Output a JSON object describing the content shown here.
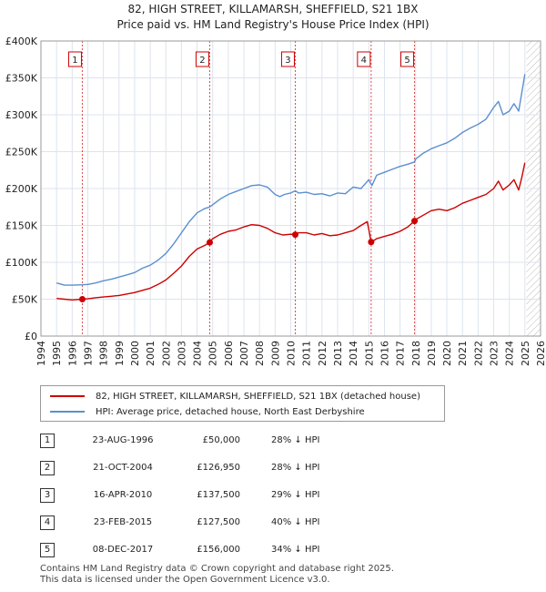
{
  "header": {
    "title": "82, HIGH STREET, KILLAMARSH, SHEFFIELD, S21 1BX",
    "subtitle": "Price paid vs. HM Land Registry's House Price Index (HPI)"
  },
  "legend": {
    "property_label": "82, HIGH STREET, KILLAMARSH, SHEFFIELD, S21 1BX (detached house)",
    "hpi_label": "HPI: Average price, detached house, North East Derbyshire"
  },
  "sales": [
    {
      "num": "1",
      "date": "23-AUG-1996",
      "price": "£50,000",
      "hpi": "28% ↓ HPI"
    },
    {
      "num": "2",
      "date": "21-OCT-2004",
      "price": "£126,950",
      "hpi": "28% ↓ HPI"
    },
    {
      "num": "3",
      "date": "16-APR-2010",
      "price": "£137,500",
      "hpi": "29% ↓ HPI"
    },
    {
      "num": "4",
      "date": "23-FEB-2015",
      "price": "£127,500",
      "hpi": "40% ↓ HPI"
    },
    {
      "num": "5",
      "date": "08-DEC-2017",
      "price": "£156,000",
      "hpi": "34% ↓ HPI"
    }
  ],
  "footer": {
    "line1": "Contains HM Land Registry data © Crown copyright and database right 2025.",
    "line2": "This data is licensed under the Open Government Licence v3.0."
  },
  "colors": {
    "property": "#cc0000",
    "hpi": "#5b8fd0",
    "grid": "#dde3ee",
    "plot_bg": "#ffffff",
    "hatch": "#bbbbbb"
  },
  "chart_data": {
    "type": "line",
    "title": "Price paid vs. HM Land Registry's House Price Index (HPI)",
    "xlim": [
      1994,
      2026
    ],
    "ylim": [
      0,
      400000
    ],
    "x_ticks": [
      1994,
      1995,
      1996,
      1997,
      1998,
      1999,
      2000,
      2001,
      2002,
      2003,
      2004,
      2005,
      2006,
      2007,
      2008,
      2009,
      2010,
      2011,
      2012,
      2013,
      2014,
      2015,
      2016,
      2017,
      2018,
      2019,
      2020,
      2021,
      2022,
      2023,
      2024,
      2025,
      2026
    ],
    "y_ticks": [
      0,
      50000,
      100000,
      150000,
      200000,
      250000,
      300000,
      350000,
      400000
    ],
    "y_tick_labels": [
      "£0",
      "£50K",
      "£100K",
      "£150K",
      "£200K",
      "£250K",
      "£300K",
      "£350K",
      "£400K"
    ],
    "grid": true,
    "future_hatch_from": 2025.1,
    "series": [
      {
        "name": "HPI: Average price, detached house, North East Derbyshire",
        "x": [
          1995.0,
          1995.5,
          1996.0,
          1996.65,
          1997.0,
          1997.5,
          1998.0,
          1998.5,
          1999.0,
          1999.5,
          2000.0,
          2000.5,
          2001.0,
          2001.5,
          2002.0,
          2002.5,
          2003.0,
          2003.5,
          2004.0,
          2004.5,
          2004.8,
          2005.0,
          2005.5,
          2006.0,
          2006.5,
          2007.0,
          2007.5,
          2008.0,
          2008.5,
          2009.0,
          2009.3,
          2009.6,
          2010.0,
          2010.3,
          2010.5,
          2011.0,
          2011.5,
          2012.0,
          2012.5,
          2013.0,
          2013.5,
          2014.0,
          2014.5,
          2015.0,
          2015.2,
          2015.5,
          2016.0,
          2016.5,
          2017.0,
          2017.5,
          2017.93,
          2018.0,
          2018.5,
          2019.0,
          2019.5,
          2020.0,
          2020.5,
          2021.0,
          2021.5,
          2022.0,
          2022.5,
          2023.0,
          2023.3,
          2023.6,
          2024.0,
          2024.3,
          2024.6,
          2024.8,
          2025.0
        ],
        "y": [
          72000,
          69000,
          69000,
          69500,
          70000,
          72000,
          75000,
          77000,
          80000,
          83000,
          86000,
          92000,
          96000,
          103000,
          112000,
          125000,
          140000,
          155000,
          167000,
          173000,
          175000,
          178000,
          186000,
          192000,
          196000,
          200000,
          204000,
          205000,
          202000,
          192000,
          189000,
          192000,
          194000,
          197000,
          194000,
          195000,
          192000,
          193000,
          190000,
          194000,
          193000,
          202000,
          200000,
          212000,
          204000,
          218000,
          222000,
          226000,
          230000,
          233000,
          236000,
          240000,
          248000,
          254000,
          258000,
          262000,
          268000,
          276000,
          282000,
          287000,
          294000,
          310000,
          318000,
          300000,
          305000,
          315000,
          305000,
          330000,
          355000
        ]
      },
      {
        "name": "82, HIGH STREET, KILLAMARSH, SHEFFIELD, S21 1BX (detached house)",
        "x": [
          1995.0,
          1995.5,
          1996.0,
          1996.65,
          1997.0,
          1997.5,
          1998.0,
          1998.5,
          1999.0,
          1999.5,
          2000.0,
          2000.5,
          2001.0,
          2001.5,
          2002.0,
          2002.5,
          2003.0,
          2003.5,
          2004.0,
          2004.5,
          2004.8,
          2005.0,
          2005.5,
          2006.0,
          2006.5,
          2007.0,
          2007.5,
          2008.0,
          2008.5,
          2009.0,
          2009.5,
          2010.0,
          2010.29,
          2010.5,
          2011.0,
          2011.5,
          2012.0,
          2012.5,
          2013.0,
          2013.5,
          2014.0,
          2014.5,
          2014.9,
          2015.15,
          2015.5,
          2016.0,
          2016.5,
          2017.0,
          2017.5,
          2017.93,
          2018.0,
          2018.5,
          2019.0,
          2019.5,
          2020.0,
          2020.5,
          2021.0,
          2021.5,
          2022.0,
          2022.5,
          2023.0,
          2023.3,
          2023.6,
          2024.0,
          2024.3,
          2024.6,
          2024.8,
          2025.0
        ],
        "y": [
          51000,
          50000,
          49000,
          50000,
          50500,
          52000,
          53000,
          54000,
          55000,
          57000,
          59000,
          62000,
          65000,
          70000,
          76000,
          85000,
          95000,
          108000,
          118000,
          123000,
          126950,
          132000,
          138000,
          142000,
          144000,
          148000,
          151000,
          150000,
          146000,
          140000,
          137000,
          138000,
          137500,
          140000,
          140000,
          137000,
          139000,
          136000,
          137000,
          140000,
          143000,
          150000,
          155000,
          127500,
          132000,
          135000,
          138000,
          142000,
          148000,
          156000,
          158000,
          164000,
          170000,
          172000,
          170000,
          174000,
          180000,
          184000,
          188000,
          192000,
          200000,
          210000,
          198000,
          205000,
          212000,
          198000,
          215000,
          235000
        ]
      }
    ],
    "sale_markers": [
      {
        "label": "1",
        "x": 1996.65,
        "price": 50000
      },
      {
        "label": "2",
        "x": 2004.81,
        "price": 126950
      },
      {
        "label": "3",
        "x": 2010.29,
        "price": 137500
      },
      {
        "label": "4",
        "x": 2015.15,
        "price": 127500
      },
      {
        "label": "5",
        "x": 2017.93,
        "price": 156000
      }
    ]
  }
}
